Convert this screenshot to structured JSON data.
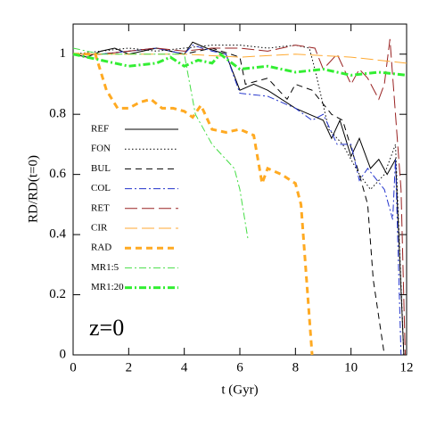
{
  "chart_data": {
    "type": "line",
    "xlabel": "t (Gyr)",
    "ylabel": "RD/RD(t=0)",
    "annotation": "z=0",
    "xlim": [
      0,
      12
    ],
    "ylim": [
      0,
      1.1
    ],
    "xticks": [
      0,
      2,
      4,
      6,
      8,
      10,
      12
    ],
    "yticks": [
      0,
      0.2,
      0.4,
      0.6,
      0.8,
      1
    ],
    "legend": "left",
    "series": [
      {
        "name": "REF",
        "color": "#000000",
        "linestyle": "solid",
        "linewidth": 1,
        "x": [
          0,
          0.5,
          1,
          1.5,
          2,
          2.5,
          3,
          3.5,
          4,
          4.3,
          4.8,
          5.5,
          6,
          6.5,
          7,
          7.5,
          8,
          8.5,
          9,
          9.3,
          9.6,
          10,
          10.3,
          10.7,
          11,
          11.3,
          11.6,
          11.9
        ],
        "values": [
          1,
          0.99,
          1.01,
          1.02,
          1,
          1.01,
          1.02,
          1.01,
          1.0,
          1.04,
          1.02,
          1.0,
          0.88,
          0.9,
          0.88,
          0.85,
          0.82,
          0.8,
          0.78,
          0.72,
          0.78,
          0.66,
          0.72,
          0.62,
          0.65,
          0.6,
          0.65,
          0
        ]
      },
      {
        "name": "FON",
        "color": "#000000",
        "linestyle": "dotted",
        "linewidth": 1,
        "x": [
          0,
          1,
          2,
          3,
          4,
          5,
          6,
          7,
          8,
          8.5,
          8.7,
          9.2,
          9.7,
          10.3,
          10.7,
          11.2,
          11.6,
          11.9
        ],
        "values": [
          1,
          1.01,
          1.02,
          1.01,
          1.02,
          1.03,
          1.03,
          1.02,
          1.03,
          1.02,
          0.95,
          0.75,
          0.7,
          0.6,
          0.55,
          0.6,
          0.7,
          0
        ]
      },
      {
        "name": "BUL",
        "color": "#000000",
        "linestyle": "dashed",
        "linewidth": 1,
        "x": [
          0,
          1,
          2,
          3,
          4,
          5,
          6,
          6.2,
          7,
          7.7,
          8,
          8.6,
          9.3,
          9.7,
          10.3,
          10.6,
          10.8,
          11.2
        ],
        "values": [
          1,
          1.0,
          1.01,
          1.02,
          1.0,
          1.02,
          0.99,
          0.9,
          0.92,
          0.85,
          0.9,
          0.88,
          0.8,
          0.78,
          0.6,
          0.5,
          0.25,
          0
        ]
      },
      {
        "name": "COL",
        "color": "#2233cc",
        "linestyle": "dashdot",
        "linewidth": 1,
        "x": [
          0,
          1,
          2,
          3,
          4,
          4.3,
          5,
          5.5,
          6,
          7,
          8,
          8.6,
          9,
          9.5,
          10,
          10.3,
          10.6,
          11.2,
          11.5,
          11.6,
          11.8
        ],
        "values": [
          1,
          1.0,
          1.01,
          1.02,
          1.0,
          1.03,
          1.01,
          1.0,
          0.87,
          0.86,
          0.82,
          0.78,
          0.8,
          0.7,
          0.7,
          0.58,
          0.62,
          0.55,
          0.45,
          0.65,
          0
        ]
      },
      {
        "name": "RET",
        "color": "#992222",
        "linestyle": "longdash",
        "linewidth": 1,
        "x": [
          0,
          1,
          2,
          3,
          4,
          5,
          6,
          7,
          8,
          8.7,
          9,
          9.5,
          10,
          10.3,
          10.6,
          11,
          11.2,
          11.4,
          11.6,
          11.8,
          11.95
        ],
        "values": [
          1,
          1.0,
          1.01,
          1.02,
          1.01,
          1.02,
          1.02,
          1.01,
          1.03,
          1.02,
          0.95,
          1.0,
          0.9,
          0.95,
          0.92,
          0.85,
          0.9,
          1.05,
          0.8,
          0.55,
          0
        ]
      },
      {
        "name": "CIR",
        "color": "#ffaa33",
        "linestyle": "longdash",
        "linewidth": 1,
        "x": [
          0,
          2,
          4,
          6,
          8,
          10,
          12
        ],
        "values": [
          1,
          1.0,
          1.0,
          0.99,
          1.0,
          0.99,
          0.97
        ]
      },
      {
        "name": "RAD",
        "color": "#ffaa22",
        "linestyle": "dashed",
        "linewidth": 3,
        "x": [
          0,
          0.8,
          1.2,
          1.6,
          2,
          2.4,
          2.8,
          3.2,
          3.6,
          4,
          4.3,
          4.6,
          5,
          5.5,
          6,
          6.5,
          6.8,
          7,
          7.5,
          8,
          8.2,
          8.6
        ],
        "values": [
          1,
          1.0,
          0.88,
          0.82,
          0.82,
          0.84,
          0.85,
          0.82,
          0.82,
          0.81,
          0.79,
          0.83,
          0.75,
          0.74,
          0.75,
          0.73,
          0.57,
          0.62,
          0.6,
          0.57,
          0.5,
          0
        ]
      },
      {
        "name": "MR1:5",
        "color": "#44dd44",
        "linestyle": "dashdot",
        "linewidth": 1,
        "x": [
          0,
          1,
          2,
          3,
          4,
          4.2,
          4.4,
          5,
          5.8,
          6,
          6.3
        ],
        "values": [
          1.02,
          1.0,
          1.0,
          1.0,
          1.0,
          0.9,
          0.8,
          0.7,
          0.62,
          0.55,
          0.38
        ]
      },
      {
        "name": "MR1:20",
        "color": "#33ee33",
        "linestyle": "dashdot",
        "linewidth": 3,
        "x": [
          0,
          1,
          2,
          3,
          3.5,
          4,
          4.5,
          5,
          5.3,
          6,
          7,
          8,
          9,
          10,
          11,
          12
        ],
        "values": [
          1,
          0.98,
          0.96,
          0.97,
          0.99,
          0.96,
          0.98,
          0.97,
          1.0,
          0.95,
          0.96,
          0.94,
          0.95,
          0.93,
          0.94,
          0.93
        ]
      }
    ]
  }
}
